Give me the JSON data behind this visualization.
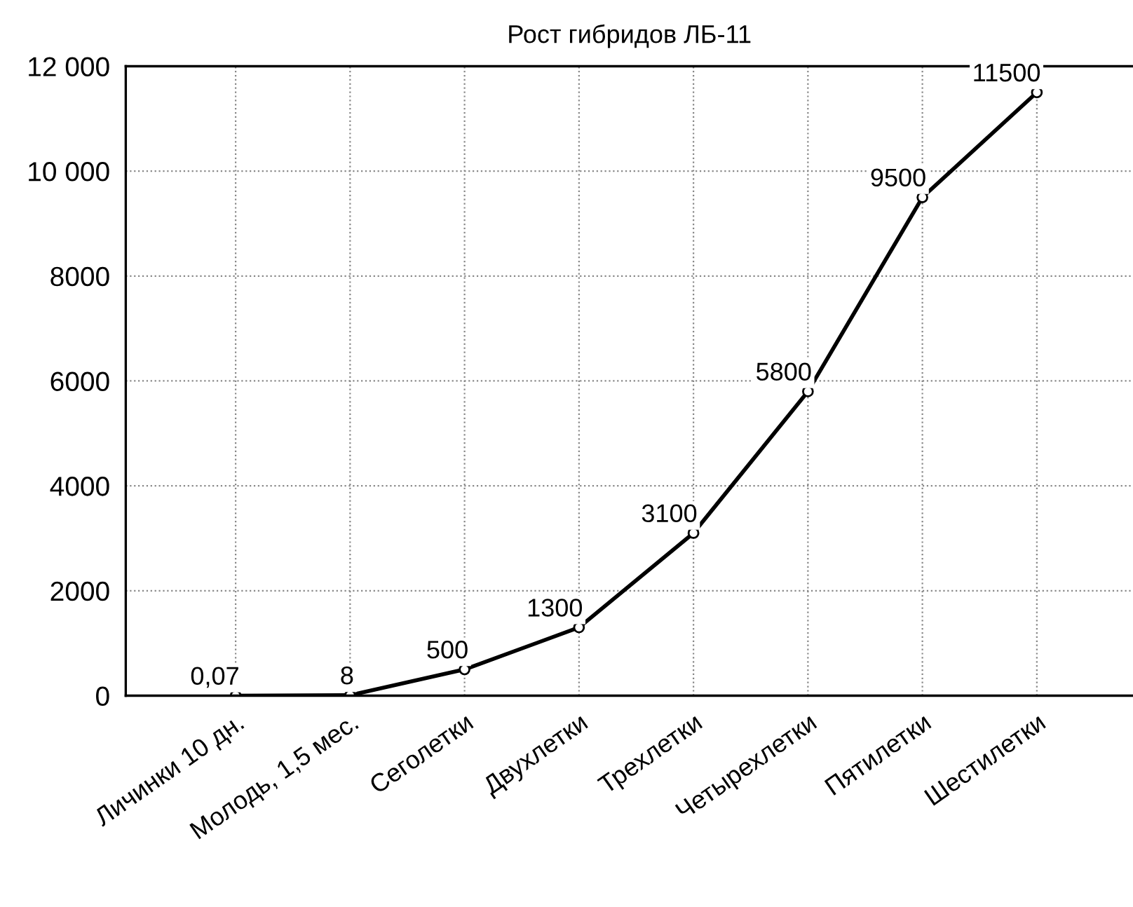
{
  "chart_data": {
    "type": "line",
    "title": "Рост гибридов ЛБ-11",
    "categories": [
      "Личинки 10 дн.",
      "Молодь, 1,5 мес.",
      "Сеголетки",
      "Двухлетки",
      "Трехлетки",
      "Четырехлетки",
      "Пятилетки",
      "Шестилетки"
    ],
    "series": [
      {
        "color": "#000000",
        "values": [
          0.07,
          8,
          500,
          1300,
          3100,
          5800,
          9500,
          11500
        ],
        "value_labels": [
          "0,07",
          "8",
          "500",
          "1300",
          "3100",
          "5800",
          "9500",
          "11500"
        ]
      }
    ],
    "ylim": [
      0,
      12000
    ],
    "yticks": [
      0,
      2000,
      4000,
      6000,
      8000,
      {
        "value": 10000,
        "label": "10 000"
      },
      {
        "value": 12000,
        "label": "12 000"
      }
    ],
    "grid": true,
    "marker": "circle",
    "line_style": "solid",
    "legend": false
  }
}
